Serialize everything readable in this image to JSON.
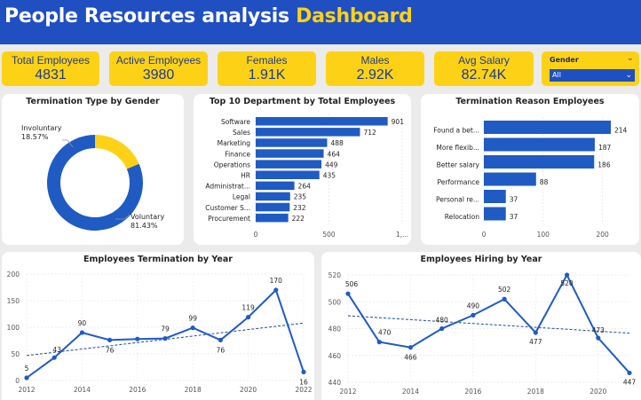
{
  "header": {
    "title_main": "People Resources analysis ",
    "title_accent": "Dashboard"
  },
  "kpis": [
    {
      "label": "Total Employees",
      "value": "4831"
    },
    {
      "label": "Active Employees",
      "value": "3980"
    },
    {
      "label": "Females",
      "value": "1.91K"
    },
    {
      "label": "Males",
      "value": "2.92K"
    },
    {
      "label": "Avg Salary",
      "value": "82.74K"
    }
  ],
  "slicer": {
    "title": "Gender",
    "value": "All"
  },
  "colors": {
    "primary": "#1f5bc2",
    "accent": "#fdd216",
    "header": "#1f4fc1"
  },
  "chart_data": [
    {
      "type": "pie",
      "title": "Termination Type by Gender",
      "categories": [
        "Involuntary",
        "Voluntary"
      ],
      "values": [
        18.57,
        81.43
      ],
      "data_labels": [
        "18.57%",
        "81.43%"
      ],
      "colors": [
        "#fdd216",
        "#1f5bc2"
      ]
    },
    {
      "type": "bar",
      "title": "Top 10 Department by Total Employees",
      "categories": [
        "Software",
        "Sales",
        "Marketing",
        "Finance",
        "Operations",
        "HR",
        "Administrat...",
        "Legal",
        "Customer S...",
        "Procurement"
      ],
      "values": [
        901,
        712,
        488,
        464,
        449,
        435,
        264,
        235,
        232,
        222
      ],
      "xlim": [
        0,
        1000
      ],
      "xticks": [
        "0",
        "500",
        "1,..."
      ]
    },
    {
      "type": "bar",
      "title": "Termination Reason Employees",
      "categories": [
        "Found a bet...",
        "More flexib...",
        "Better salary",
        "Performance",
        "Personal re...",
        "Relocation"
      ],
      "values": [
        214,
        187,
        186,
        88,
        37,
        37
      ],
      "xlim": [
        0,
        220
      ],
      "xticks": [
        "0",
        "100",
        "200"
      ]
    },
    {
      "type": "line",
      "title": "Employees Termination by Year",
      "x": [
        2012,
        2013,
        2014,
        2015,
        2016,
        2017,
        2018,
        2019,
        2020,
        2021,
        2022
      ],
      "values": [
        5,
        43,
        90,
        76,
        78,
        79,
        99,
        76,
        119,
        170,
        16
      ],
      "point_labels": [
        "5",
        "43",
        "90",
        "76",
        "",
        "79",
        "99",
        "76",
        "119",
        "170",
        "16"
      ],
      "ylim": [
        0,
        200
      ],
      "yticks": [
        0,
        50,
        100,
        150,
        200
      ],
      "xticks": [
        2012,
        2014,
        2016,
        2018,
        2020,
        2022
      ],
      "trendline": true
    },
    {
      "type": "line",
      "title": "Employees Hiring by Year",
      "x": [
        2012,
        2013,
        2014,
        2015,
        2016,
        2017,
        2018,
        2019,
        2020,
        2021
      ],
      "values": [
        506,
        470,
        466,
        480,
        490,
        502,
        477,
        520,
        473,
        447
      ],
      "point_labels": [
        "506",
        "470",
        "466",
        "480",
        "490",
        "502",
        "477",
        "520",
        "473",
        "447"
      ],
      "ylim": [
        440,
        520
      ],
      "yticks": [
        440,
        460,
        480,
        500,
        520
      ],
      "xticks": [
        2012,
        2014,
        2016,
        2018,
        2020
      ],
      "trendline": true
    }
  ]
}
